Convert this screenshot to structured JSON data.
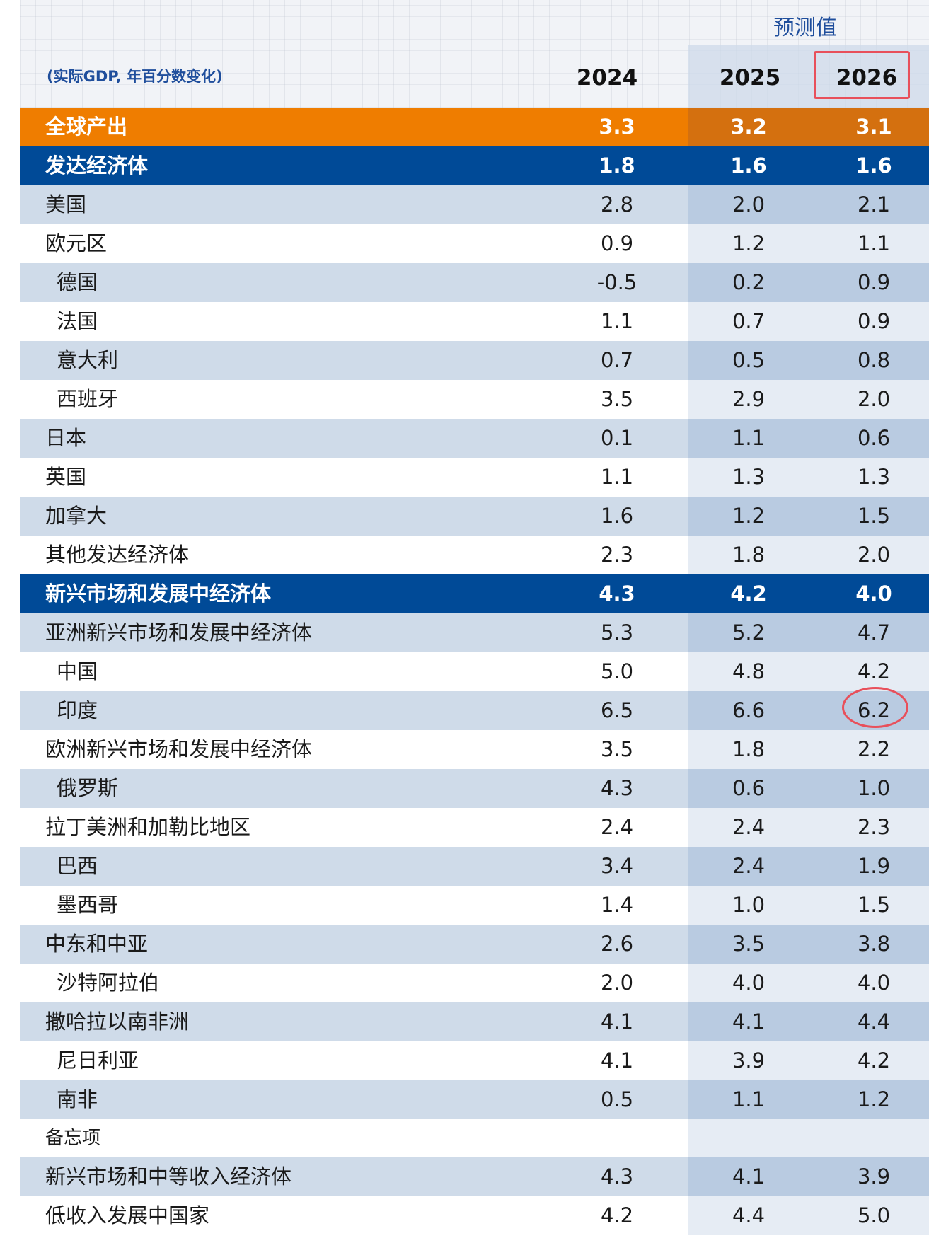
{
  "header": {
    "units": "(实际GDP, 年百分数变化)",
    "forecast_label": "预测值",
    "years": [
      "2024",
      "2025",
      "2026"
    ]
  },
  "rows": [
    {
      "label": "全球产出",
      "style": "orange",
      "values": [
        "3.3",
        "3.2",
        "3.1"
      ]
    },
    {
      "label": "发达经济体",
      "style": "navy",
      "values": [
        "1.8",
        "1.6",
        "1.6"
      ]
    },
    {
      "label": "美国",
      "style": "light",
      "values": [
        "2.8",
        "2.0",
        "2.1"
      ]
    },
    {
      "label": "欧元区",
      "style": "white",
      "values": [
        "0.9",
        "1.2",
        "1.1"
      ]
    },
    {
      "label": "德国",
      "style": "light",
      "indent": true,
      "values": [
        "-0.5",
        "0.2",
        "0.9"
      ]
    },
    {
      "label": "法国",
      "style": "white",
      "indent": true,
      "values": [
        "1.1",
        "0.7",
        "0.9"
      ]
    },
    {
      "label": "意大利",
      "style": "light",
      "indent": true,
      "values": [
        "0.7",
        "0.5",
        "0.8"
      ]
    },
    {
      "label": "西班牙",
      "style": "white",
      "indent": true,
      "values": [
        "3.5",
        "2.9",
        "2.0"
      ]
    },
    {
      "label": "日本",
      "style": "light",
      "values": [
        "0.1",
        "1.1",
        "0.6"
      ]
    },
    {
      "label": "英国",
      "style": "white",
      "values": [
        "1.1",
        "1.3",
        "1.3"
      ]
    },
    {
      "label": "加拿大",
      "style": "light",
      "values": [
        "1.6",
        "1.2",
        "1.5"
      ]
    },
    {
      "label": "其他发达经济体",
      "style": "white",
      "values": [
        "2.3",
        "1.8",
        "2.0"
      ]
    },
    {
      "label": "新兴市场和发展中经济体",
      "style": "navy",
      "values": [
        "4.3",
        "4.2",
        "4.0"
      ]
    },
    {
      "label": "亚洲新兴市场和发展中经济体",
      "style": "light",
      "values": [
        "5.3",
        "5.2",
        "4.7"
      ]
    },
    {
      "label": "中国",
      "style": "white",
      "indent": true,
      "values": [
        "5.0",
        "4.8",
        "4.2"
      ]
    },
    {
      "label": "印度",
      "style": "light",
      "indent": true,
      "values": [
        "6.5",
        "6.6",
        "6.2"
      ]
    },
    {
      "label": "欧洲新兴市场和发展中经济体",
      "style": "white",
      "values": [
        "3.5",
        "1.8",
        "2.2"
      ]
    },
    {
      "label": "俄罗斯",
      "style": "light",
      "indent": true,
      "values": [
        "4.3",
        "0.6",
        "1.0"
      ]
    },
    {
      "label": "拉丁美洲和加勒比地区",
      "style": "white",
      "values": [
        "2.4",
        "2.4",
        "2.3"
      ]
    },
    {
      "label": "巴西",
      "style": "light",
      "indent": true,
      "values": [
        "3.4",
        "2.4",
        "1.9"
      ]
    },
    {
      "label": "墨西哥",
      "style": "white",
      "indent": true,
      "values": [
        "1.4",
        "1.0",
        "1.5"
      ]
    },
    {
      "label": "中东和中亚",
      "style": "light",
      "values": [
        "2.6",
        "3.5",
        "3.8"
      ]
    },
    {
      "label": "沙特阿拉伯",
      "style": "white",
      "indent": true,
      "values": [
        "2.0",
        "4.0",
        "4.0"
      ]
    },
    {
      "label": "撒哈拉以南非洲",
      "style": "light",
      "values": [
        "4.1",
        "4.1",
        "4.4"
      ]
    },
    {
      "label": "尼日利亚",
      "style": "white",
      "indent": true,
      "values": [
        "4.1",
        "3.9",
        "4.2"
      ]
    },
    {
      "label": "南非",
      "style": "light",
      "indent": true,
      "values": [
        "0.5",
        "1.1",
        "1.2"
      ]
    },
    {
      "label": "备忘项",
      "style": "memo",
      "values": [
        "",
        "",
        ""
      ]
    },
    {
      "label": "新兴市场和中等收入经济体",
      "style": "light",
      "values": [
        "4.3",
        "4.1",
        "3.9"
      ]
    },
    {
      "label": "低收入发展中国家",
      "style": "white",
      "values": [
        "4.2",
        "4.4",
        "5.0"
      ]
    }
  ],
  "colors": {
    "orange": "#ef7d00",
    "navy": "#004a97",
    "light_row": "#cfdbe9",
    "highlight": "#e8505b"
  }
}
